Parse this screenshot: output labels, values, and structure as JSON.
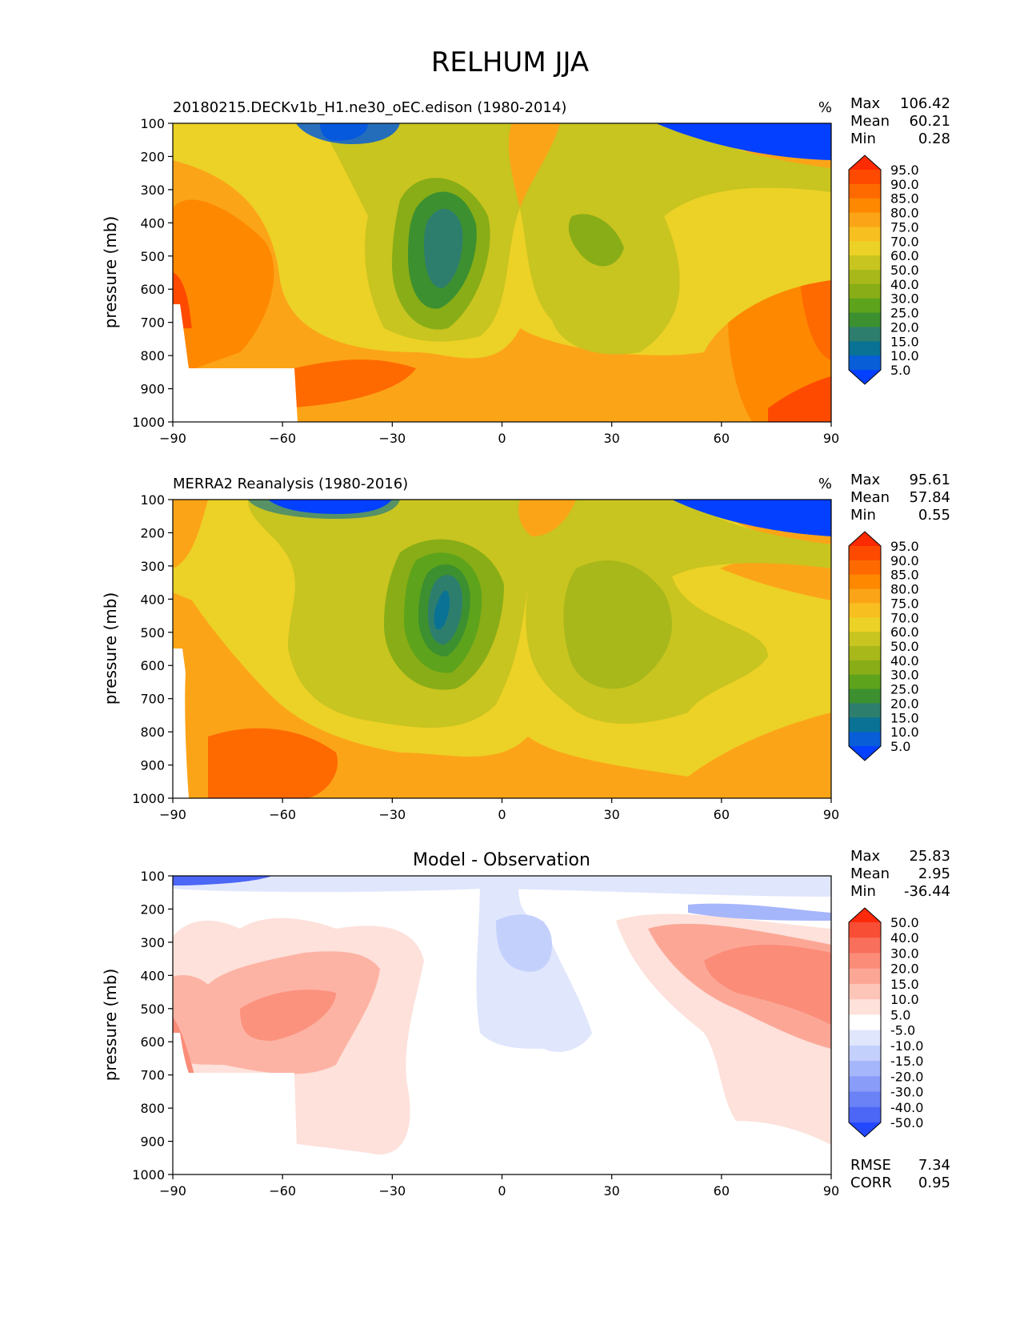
{
  "title": "RELHUM JJA",
  "chart_data": [
    {
      "type": "heatmap",
      "title": "20180215.DECKv1b_H1.ne30_oEC.edison (1980-2014)",
      "units": "%",
      "xlabel": "",
      "ylabel": "pressure (mb)",
      "xlim": [
        -90,
        90
      ],
      "ylim": [
        1000,
        100
      ],
      "xticks": [
        "−90",
        "−60",
        "−30",
        "0",
        "30",
        "60",
        "90"
      ],
      "yticks": [
        "100",
        "200",
        "300",
        "400",
        "500",
        "600",
        "700",
        "800",
        "900",
        "1000"
      ],
      "stats": [
        {
          "label": "Max",
          "value": "106.42"
        },
        {
          "label": "Mean",
          "value": "60.21"
        },
        {
          "label": "Min",
          "value": "0.28"
        }
      ],
      "colorbar": {
        "labels": [
          "95.0",
          "90.0",
          "85.0",
          "80.0",
          "75.0",
          "70.0",
          "60.0",
          "50.0",
          "40.0",
          "30.0",
          "25.0",
          "20.0",
          "15.0",
          "10.0",
          "5.0"
        ],
        "colors": [
          "#fe2a00",
          "#fe4a00",
          "#fe6a00",
          "#fe8800",
          "#fca418",
          "#f8bf20",
          "#ecd126",
          "#c8c420",
          "#a8b81a",
          "#88ad16",
          "#5ea31c",
          "#3c9030",
          "#2e7e6e",
          "#0a7294",
          "#075ed6",
          "#0340ff"
        ]
      }
    },
    {
      "type": "heatmap",
      "title": "MERRA2 Reanalysis (1980-2016)",
      "units": "%",
      "xlabel": "",
      "ylabel": "pressure (mb)",
      "xlim": [
        -90,
        90
      ],
      "ylim": [
        1000,
        100
      ],
      "xticks": [
        "−90",
        "−60",
        "−30",
        "0",
        "30",
        "60",
        "90"
      ],
      "yticks": [
        "100",
        "200",
        "300",
        "400",
        "500",
        "600",
        "700",
        "800",
        "900",
        "1000"
      ],
      "stats": [
        {
          "label": "Max",
          "value": "95.61"
        },
        {
          "label": "Mean",
          "value": "57.84"
        },
        {
          "label": "Min",
          "value": "0.55"
        }
      ],
      "colorbar": {
        "labels": [
          "95.0",
          "90.0",
          "85.0",
          "80.0",
          "75.0",
          "70.0",
          "60.0",
          "50.0",
          "40.0",
          "30.0",
          "25.0",
          "20.0",
          "15.0",
          "10.0",
          "5.0"
        ],
        "colors": [
          "#fe2a00",
          "#fe4a00",
          "#fe6a00",
          "#fe8800",
          "#fca418",
          "#f8bf20",
          "#ecd126",
          "#c8c420",
          "#a8b81a",
          "#88ad16",
          "#5ea31c",
          "#3c9030",
          "#2e7e6e",
          "#0a7294",
          "#075ed6",
          "#0340ff"
        ]
      }
    },
    {
      "type": "heatmap",
      "title": "Model - Observation",
      "units": "",
      "xlabel": "",
      "ylabel": "pressure (mb)",
      "xlim": [
        -90,
        90
      ],
      "ylim": [
        1000,
        100
      ],
      "xticks": [
        "−90",
        "−60",
        "−30",
        "0",
        "30",
        "60",
        "90"
      ],
      "yticks": [
        "100",
        "200",
        "300",
        "400",
        "500",
        "600",
        "700",
        "800",
        "900",
        "1000"
      ],
      "stats": [
        {
          "label": "Max",
          "value": "25.83"
        },
        {
          "label": "Mean",
          "value": "2.95"
        },
        {
          "label": "Min",
          "value": "-36.44"
        }
      ],
      "extra_stats": [
        {
          "label": "RMSE",
          "value": "7.34"
        },
        {
          "label": "CORR",
          "value": "0.95"
        }
      ],
      "colorbar": {
        "labels": [
          "50.0",
          "40.0",
          "30.0",
          "20.0",
          "15.0",
          "10.0",
          "5.0",
          "-5.0",
          "-10.0",
          "-15.0",
          "-20.0",
          "-30.0",
          "-40.0",
          "-50.0"
        ],
        "colors": [
          "#fe2a0a",
          "#f84e36",
          "#f8705c",
          "#fa8c78",
          "#fca796",
          "#fdc5b8",
          "#fde1da",
          "#ffffff",
          "#e0e6fc",
          "#c4d0fc",
          "#a6b6fb",
          "#889cf8",
          "#6a82f6",
          "#4c66f6",
          "#2448fe"
        ]
      }
    }
  ]
}
